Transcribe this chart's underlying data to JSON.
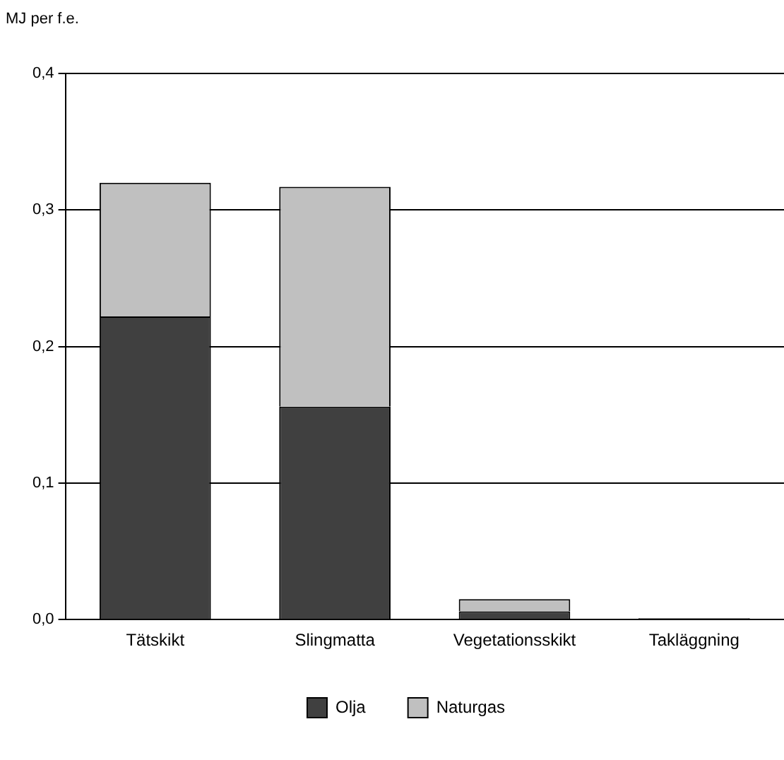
{
  "chart_data": {
    "type": "bar",
    "ylabel": "MJ per f.e.",
    "categories": [
      "Tätskikt",
      "Slingmatta",
      "Vegetationsskikt",
      "Takläggning"
    ],
    "stacked": true,
    "series": [
      {
        "name": "Olja",
        "color": "#404040",
        "values": [
          0.222,
          0.156,
          0.006,
          0.001
        ]
      },
      {
        "name": "Naturgas",
        "color": "#c0c0c0",
        "values": [
          0.098,
          0.161,
          0.009,
          0
        ]
      }
    ],
    "ylim": [
      0,
      0.4
    ],
    "yticks": [
      {
        "value": 0,
        "label": "0,0"
      },
      {
        "value": 0.1,
        "label": "0,1"
      },
      {
        "value": 0.2,
        "label": "0,2"
      },
      {
        "value": 0.3,
        "label": "0,3"
      },
      {
        "value": 0.4,
        "label": "0,4"
      }
    ],
    "grid": "y",
    "legend": "bottom"
  }
}
